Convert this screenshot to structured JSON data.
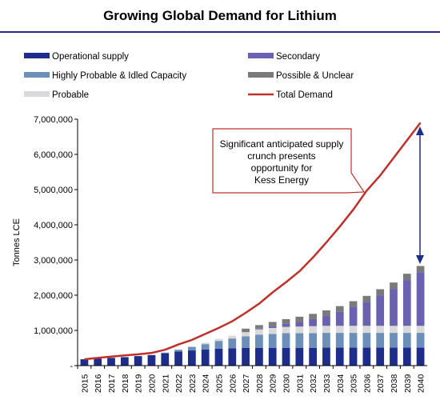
{
  "colors": {
    "operational": "#1f2d8a",
    "highly_probable": "#6b8fb8",
    "probable": "#d9d9d9",
    "secondary": "#6a62b0",
    "possible": "#7a7a7a",
    "demand": "#c0302b",
    "rule": "#1f2d8a",
    "callout_border": "#c0302b"
  },
  "chart_data": {
    "type": "bar",
    "title": "Growing Global Demand for Lithium",
    "xlabel": "",
    "ylabel": "Tonnes LCE",
    "ylim": [
      0,
      7000000
    ],
    "yticks": [
      0,
      1000000,
      2000000,
      3000000,
      4000000,
      5000000,
      6000000,
      7000000
    ],
    "ytick_labels": [
      "-",
      "1,000,000",
      "2,000,000",
      "3,000,000",
      "4,000,000",
      "5,000,000",
      "6,000,000",
      "7,000,000"
    ],
    "legend_placement": "top",
    "categories": [
      "2015",
      "2016",
      "2017",
      "2018",
      "2019",
      "2020",
      "2021",
      "2022",
      "2023",
      "2024",
      "2025",
      "2026",
      "2027",
      "2028",
      "2029",
      "2030",
      "2031",
      "2032",
      "2033",
      "2034",
      "2035",
      "2036",
      "2037",
      "2038",
      "2039",
      "2040"
    ],
    "series": [
      {
        "name": "Operational supply",
        "kind": "stacked-bar",
        "color_key": "operational",
        "values": [
          180000,
          200000,
          220000,
          240000,
          270000,
          300000,
          350000,
          400000,
          430000,
          460000,
          480000,
          490000,
          500000,
          500000,
          500000,
          500000,
          500000,
          500000,
          510000,
          510000,
          510000,
          510000,
          510000,
          510000,
          510000,
          510000
        ]
      },
      {
        "name": "Highly Probable & Idled Capacity",
        "kind": "stacked-bar",
        "color_key": "highly_probable",
        "values": [
          0,
          0,
          0,
          0,
          0,
          0,
          20000,
          50000,
          100000,
          150000,
          220000,
          280000,
          330000,
          380000,
          400000,
          420000,
          420000,
          420000,
          420000,
          420000,
          420000,
          420000,
          420000,
          420000,
          420000,
          420000
        ]
      },
      {
        "name": "Probable",
        "kind": "stacked-bar",
        "color_key": "probable",
        "values": [
          0,
          0,
          0,
          0,
          0,
          0,
          0,
          10000,
          20000,
          40000,
          60000,
          80000,
          120000,
          150000,
          170000,
          180000,
          190000,
          200000,
          200000,
          200000,
          200000,
          200000,
          200000,
          200000,
          200000,
          200000
        ]
      },
      {
        "name": "Secondary",
        "kind": "stacked-bar",
        "color_key": "secondary",
        "values": [
          0,
          0,
          0,
          0,
          0,
          0,
          0,
          0,
          0,
          0,
          0,
          0,
          0,
          20000,
          50000,
          90000,
          130000,
          200000,
          280000,
          400000,
          530000,
          680000,
          860000,
          1050000,
          1300000,
          1520000
        ]
      },
      {
        "name": "Possible & Unclear",
        "kind": "stacked-bar",
        "color_key": "possible",
        "values": [
          0,
          0,
          0,
          0,
          0,
          0,
          0,
          0,
          0,
          0,
          0,
          0,
          100000,
          100000,
          120000,
          130000,
          150000,
          150000,
          160000,
          160000,
          170000,
          170000,
          180000,
          180000,
          180000,
          180000
        ]
      },
      {
        "name": "Total Demand",
        "kind": "line",
        "color_key": "demand",
        "values": [
          180000,
          220000,
          255000,
          290000,
          320000,
          360000,
          450000,
          600000,
          730000,
          900000,
          1070000,
          1260000,
          1500000,
          1760000,
          2080000,
          2370000,
          2680000,
          3070000,
          3500000,
          3950000,
          4430000,
          4970000,
          5400000,
          5900000,
          6400000,
          6900000
        ]
      }
    ],
    "annotation": "Significant anticipated supply crunch presents opportunity for Kess Energy"
  }
}
